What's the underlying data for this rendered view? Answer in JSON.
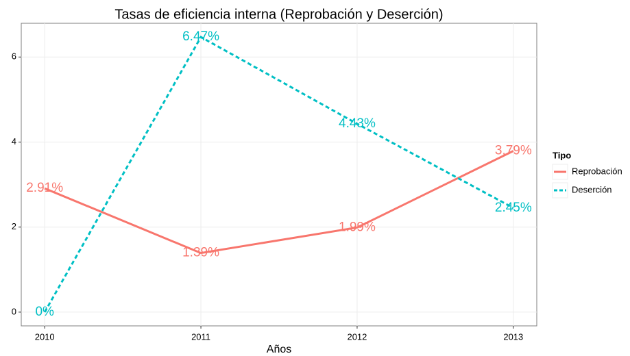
{
  "chart_data": {
    "type": "line",
    "title": "Tasas de eficiencia interna (Reprobación y Deserción)",
    "x_label": "Años",
    "x": [
      2010,
      2011,
      2012,
      2013
    ],
    "xlim": [
      2009.85,
      2013.15
    ],
    "xticks": [
      2010,
      2011,
      2012,
      2013
    ],
    "ylim": [
      -0.3235,
      6.7935
    ],
    "yticks": [
      0,
      2,
      4,
      6
    ],
    "grid": true,
    "legend_title": "Tipo",
    "legend_position": "right",
    "series": [
      {
        "name": "Reprobación",
        "color": "#f8766d",
        "dashed": false,
        "values": [
          2.91,
          1.39,
          1.99,
          3.79
        ],
        "value_labels": [
          "2.91%",
          "1.39%",
          "1.99%",
          "3.79%"
        ]
      },
      {
        "name": "Deserción",
        "color": "#00bfc4",
        "dashed": true,
        "values": [
          0,
          6.47,
          4.43,
          2.45
        ],
        "value_labels": [
          "0%",
          "6.47%",
          "4.43%",
          "2.45%"
        ]
      }
    ]
  }
}
